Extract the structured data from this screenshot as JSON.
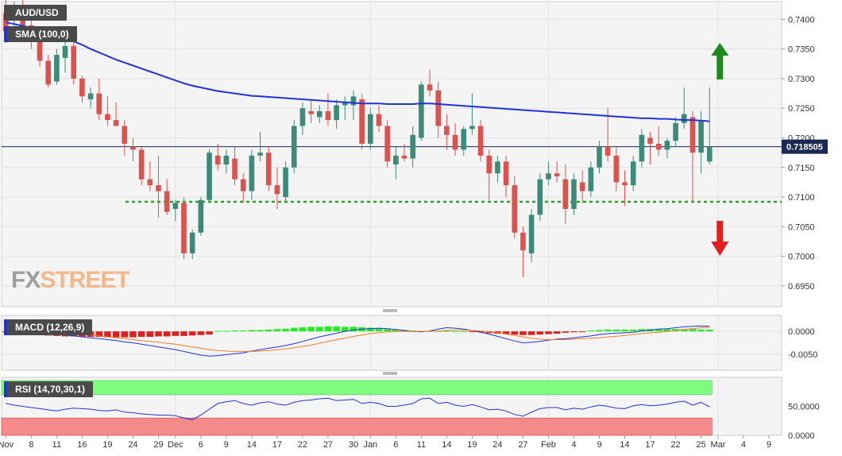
{
  "chart_data": [
    {
      "type": "candlestick",
      "symbol": "AUD/USD",
      "indicator_label": "SMA (100,0)",
      "last_price_label": "0.718505",
      "last_price": 0.718505,
      "ylim": [
        0.6915,
        0.743
      ],
      "y_ticks": [
        "0.7400",
        "0.7350",
        "0.7300",
        "0.7250",
        "0.7200",
        "0.7150",
        "0.7100",
        "0.7050",
        "0.7000",
        "0.6950"
      ],
      "y_tick_values": [
        0.74,
        0.735,
        0.73,
        0.725,
        0.72,
        0.715,
        0.71,
        0.705,
        0.7,
        0.695
      ],
      "support_level": 0.7092,
      "arrows": [
        {
          "direction": "up",
          "color": "#1e8a1e"
        },
        {
          "direction": "down",
          "color": "#e02020"
        }
      ],
      "colors": {
        "up": "#3d8a78",
        "down": "#d9534f",
        "sma": "#2133d6",
        "support": "#2aa52a"
      },
      "candles": [
        [
          0.741,
          0.744,
          0.736,
          0.738
        ],
        [
          0.74,
          0.743,
          0.737,
          0.742
        ],
        [
          0.742,
          0.744,
          0.738,
          0.739
        ],
        [
          0.739,
          0.741,
          0.735,
          0.737
        ],
        [
          0.737,
          0.738,
          0.732,
          0.733
        ],
        [
          0.733,
          0.734,
          0.7285,
          0.729
        ],
        [
          0.7295,
          0.735,
          0.729,
          0.734
        ],
        [
          0.7335,
          0.7365,
          0.731,
          0.7355
        ],
        [
          0.7355,
          0.737,
          0.729,
          0.73
        ],
        [
          0.73,
          0.7305,
          0.726,
          0.727
        ],
        [
          0.7265,
          0.7285,
          0.725,
          0.7275
        ],
        [
          0.7275,
          0.73,
          0.723,
          0.724
        ],
        [
          0.724,
          0.727,
          0.722,
          0.723
        ],
        [
          0.723,
          0.726,
          0.722,
          0.722
        ],
        [
          0.722,
          0.723,
          0.717,
          0.719
        ],
        [
          0.7185,
          0.72,
          0.716,
          0.718
        ],
        [
          0.718,
          0.7185,
          0.712,
          0.713
        ],
        [
          0.713,
          0.716,
          0.711,
          0.712
        ],
        [
          0.712,
          0.717,
          0.7065,
          0.711
        ],
        [
          0.711,
          0.713,
          0.707,
          0.7075
        ],
        [
          0.708,
          0.7095,
          0.706,
          0.709
        ],
        [
          0.709,
          0.71,
          0.6995,
          0.7005
        ],
        [
          0.7005,
          0.7045,
          0.6995,
          0.704
        ],
        [
          0.704,
          0.71,
          0.7035,
          0.7095
        ],
        [
          0.7095,
          0.718,
          0.709,
          0.7175
        ],
        [
          0.717,
          0.719,
          0.7145,
          0.7155
        ],
        [
          0.7155,
          0.718,
          0.714,
          0.717
        ],
        [
          0.7165,
          0.7185,
          0.712,
          0.713
        ],
        [
          0.713,
          0.714,
          0.709,
          0.711
        ],
        [
          0.711,
          0.718,
          0.7095,
          0.717
        ],
        [
          0.717,
          0.721,
          0.716,
          0.7175
        ],
        [
          0.7175,
          0.7185,
          0.711,
          0.712
        ],
        [
          0.712,
          0.715,
          0.708,
          0.7105
        ],
        [
          0.71,
          0.716,
          0.709,
          0.715
        ],
        [
          0.715,
          0.723,
          0.714,
          0.722
        ],
        [
          0.722,
          0.726,
          0.7205,
          0.725
        ],
        [
          0.7245,
          0.7265,
          0.7225,
          0.724
        ],
        [
          0.7235,
          0.7255,
          0.7225,
          0.7245
        ],
        [
          0.7245,
          0.7275,
          0.722,
          0.723
        ],
        [
          0.723,
          0.7265,
          0.7215,
          0.7255
        ],
        [
          0.7255,
          0.727,
          0.723,
          0.726
        ],
        [
          0.7255,
          0.728,
          0.723,
          0.727
        ],
        [
          0.7265,
          0.7275,
          0.718,
          0.719
        ],
        [
          0.719,
          0.725,
          0.718,
          0.724
        ],
        [
          0.724,
          0.7255,
          0.721,
          0.722
        ],
        [
          0.722,
          0.723,
          0.715,
          0.716
        ],
        [
          0.7155,
          0.7185,
          0.713,
          0.717
        ],
        [
          0.717,
          0.719,
          0.716,
          0.7165
        ],
        [
          0.7165,
          0.722,
          0.715,
          0.7205
        ],
        [
          0.72,
          0.7295,
          0.7195,
          0.729
        ],
        [
          0.729,
          0.7315,
          0.727,
          0.728
        ],
        [
          0.728,
          0.7295,
          0.72,
          0.722
        ],
        [
          0.722,
          0.724,
          0.718,
          0.7205
        ],
        [
          0.7205,
          0.7225,
          0.717,
          0.718
        ],
        [
          0.718,
          0.722,
          0.717,
          0.7215
        ],
        [
          0.7215,
          0.7275,
          0.7205,
          0.722
        ],
        [
          0.722,
          0.723,
          0.716,
          0.717
        ],
        [
          0.717,
          0.718,
          0.7095,
          0.714
        ],
        [
          0.714,
          0.717,
          0.7125,
          0.716
        ],
        [
          0.716,
          0.717,
          0.71,
          0.712
        ],
        [
          0.712,
          0.7135,
          0.703,
          0.704
        ],
        [
          0.704,
          0.705,
          0.6965,
          0.701
        ],
        [
          0.7005,
          0.708,
          0.699,
          0.707
        ],
        [
          0.707,
          0.714,
          0.706,
          0.713
        ],
        [
          0.713,
          0.716,
          0.712,
          0.714
        ],
        [
          0.714,
          0.716,
          0.7125,
          0.7135
        ],
        [
          0.713,
          0.7155,
          0.7055,
          0.708
        ],
        [
          0.708,
          0.714,
          0.707,
          0.713
        ],
        [
          0.7125,
          0.7145,
          0.709,
          0.711
        ],
        [
          0.711,
          0.716,
          0.71,
          0.715
        ],
        [
          0.715,
          0.7195,
          0.714,
          0.7185
        ],
        [
          0.7185,
          0.725,
          0.716,
          0.717
        ],
        [
          0.717,
          0.7185,
          0.711,
          0.7125
        ],
        [
          0.7125,
          0.7145,
          0.7085,
          0.712
        ],
        [
          0.712,
          0.717,
          0.711,
          0.716
        ],
        [
          0.716,
          0.7215,
          0.715,
          0.7205
        ],
        [
          0.72,
          0.721,
          0.7155,
          0.719
        ],
        [
          0.719,
          0.722,
          0.717,
          0.718
        ],
        [
          0.718,
          0.72,
          0.7165,
          0.7195
        ],
        [
          0.7195,
          0.7235,
          0.7185,
          0.7225
        ],
        [
          0.7225,
          0.7285,
          0.7215,
          0.724
        ],
        [
          0.7235,
          0.7245,
          0.709,
          0.7175
        ],
        [
          0.7175,
          0.7245,
          0.714,
          0.723
        ],
        [
          0.716,
          0.7285,
          0.7155,
          0.7185
        ]
      ],
      "sma_values": [
        0.7395,
        0.7392,
        0.7389,
        0.7386,
        0.7382,
        0.7378,
        0.7373,
        0.7368,
        0.7363,
        0.7357,
        0.735,
        0.7344,
        0.7338,
        0.7332,
        0.7327,
        0.7322,
        0.7317,
        0.7312,
        0.7307,
        0.7302,
        0.7297,
        0.7292,
        0.7288,
        0.7285,
        0.7282,
        0.7279,
        0.7277,
        0.7275,
        0.7273,
        0.7271,
        0.727,
        0.7269,
        0.7268,
        0.7267,
        0.7266,
        0.7265,
        0.7264,
        0.7263,
        0.7262,
        0.7261,
        0.726,
        0.7259,
        0.7258,
        0.7258,
        0.7258,
        0.7257,
        0.7257,
        0.7257,
        0.7257,
        0.7258,
        0.7258,
        0.7257,
        0.7256,
        0.7255,
        0.7254,
        0.7253,
        0.7252,
        0.7251,
        0.725,
        0.7249,
        0.7248,
        0.7247,
        0.7246,
        0.7245,
        0.7244,
        0.7243,
        0.7242,
        0.7241,
        0.724,
        0.7239,
        0.7238,
        0.7237,
        0.7236,
        0.7235,
        0.7234,
        0.7233,
        0.7233,
        0.7232,
        0.7232,
        0.7231,
        0.723,
        0.723,
        0.7229,
        0.7228
      ]
    },
    {
      "type": "macd",
      "label": "MACD (12,26,9)",
      "ylim": [
        -0.0085,
        0.0035
      ],
      "y_ticks": [
        "0.0000",
        "-0.0050"
      ],
      "y_tick_values": [
        0,
        -0.005
      ],
      "colors": {
        "hist_pos": "#22ee22",
        "hist_neg": "#e02020",
        "macd": "#2133d6",
        "signal": "#f07c22"
      },
      "histogram": [
        -0.0002,
        -0.0004,
        -0.0006,
        -0.0007,
        -0.0008,
        -0.0009,
        -0.001,
        -0.0011,
        -0.0011,
        -0.0012,
        -0.0012,
        -0.0012,
        -0.0013,
        -0.0013,
        -0.0013,
        -0.0013,
        -0.0012,
        -0.0012,
        -0.0011,
        -0.0011,
        -0.001,
        -0.001,
        -0.0009,
        -0.0008,
        -0.0007,
        0.0001,
        0.0001,
        0.0002,
        0.0002,
        0.0003,
        0.0003,
        0.0004,
        0.0005,
        0.0006,
        0.0008,
        0.0009,
        0.001,
        0.001,
        0.0011,
        0.0011,
        0.001,
        0.001,
        0.0009,
        0.0008,
        0.0007,
        0.0005,
        0.0004,
        0.0003,
        0.0002,
        0.0001,
        0.0001,
        0.0001,
        0.0001,
        0.0,
        0.0,
        -0.0001,
        -0.0002,
        -0.0004,
        -0.0005,
        -0.0006,
        -0.0007,
        -0.0008,
        -0.0008,
        -0.0007,
        -0.0006,
        -0.0005,
        -0.0003,
        -0.0002,
        -0.0001,
        0.0002,
        0.0003,
        0.0004,
        0.0004,
        0.0004,
        0.0004,
        0.0005,
        0.0005,
        0.0005,
        0.0005,
        0.0005,
        0.0005,
        0.0005,
        0.0004,
        0.0004
      ],
      "macd": [
        0.0008,
        0.0006,
        0.0004,
        0.0001,
        -0.0001,
        -0.0003,
        -0.0006,
        -0.0008,
        -0.001,
        -0.0012,
        -0.0014,
        -0.0016,
        -0.0018,
        -0.002,
        -0.0023,
        -0.0025,
        -0.0028,
        -0.0031,
        -0.0034,
        -0.0037,
        -0.004,
        -0.0044,
        -0.0048,
        -0.0052,
        -0.0054,
        -0.0053,
        -0.0051,
        -0.0049,
        -0.0047,
        -0.0043,
        -0.004,
        -0.0037,
        -0.0034,
        -0.0031,
        -0.0027,
        -0.0022,
        -0.0017,
        -0.0012,
        -0.0008,
        -0.0004,
        0.0,
        0.0003,
        0.0005,
        0.0006,
        0.0007,
        0.0006,
        0.0004,
        0.0002,
        0.0,
        -0.0001,
        0.0001,
        0.0005,
        0.0008,
        0.0007,
        0.0005,
        0.0002,
        -0.0002,
        -0.0006,
        -0.0011,
        -0.0016,
        -0.0021,
        -0.0025,
        -0.0024,
        -0.0022,
        -0.0019,
        -0.0017,
        -0.0016,
        -0.0014,
        -0.0012,
        -0.001,
        -0.0007,
        -0.0005,
        -0.0004,
        -0.0003,
        -0.0002,
        0.0001,
        0.0003,
        0.0005,
        0.0006,
        0.0008,
        0.001,
        0.0011,
        0.0012,
        0.0011
      ],
      "signal": [
        0.0004,
        0.0003,
        0.0002,
        0.0001,
        0.0,
        -0.0001,
        -0.0002,
        -0.0003,
        -0.0005,
        -0.0006,
        -0.0008,
        -0.001,
        -0.0012,
        -0.0014,
        -0.0016,
        -0.0018,
        -0.002,
        -0.0022,
        -0.0024,
        -0.0026,
        -0.0028,
        -0.0031,
        -0.0034,
        -0.0037,
        -0.004,
        -0.0042,
        -0.0043,
        -0.0044,
        -0.0044,
        -0.0044,
        -0.0043,
        -0.0042,
        -0.004,
        -0.0038,
        -0.0036,
        -0.0033,
        -0.003,
        -0.0026,
        -0.0022,
        -0.0018,
        -0.0015,
        -0.0011,
        -0.0008,
        -0.0005,
        -0.0003,
        -0.0001,
        0.0,
        0.0,
        0.0,
        0.0,
        0.0,
        0.0001,
        0.0002,
        0.0003,
        0.0003,
        0.0002,
        0.0001,
        -0.0001,
        -0.0003,
        -0.0006,
        -0.0009,
        -0.0012,
        -0.0015,
        -0.0017,
        -0.0018,
        -0.0018,
        -0.0018,
        -0.0017,
        -0.0016,
        -0.0015,
        -0.0014,
        -0.0012,
        -0.0011,
        -0.0009,
        -0.0007,
        -0.0005,
        -0.0003,
        -0.0002,
        0.0,
        0.0002,
        0.0004,
        0.0006,
        0.0008,
        0.0009
      ]
    },
    {
      "type": "rsi",
      "label": "RSI (14,70,30,1)",
      "ylim": [
        0,
        100
      ],
      "y_ticks": [
        "50.0000",
        "0.0000"
      ],
      "y_tick_values": [
        50,
        0
      ],
      "overbought": 70,
      "oversold": 30,
      "colors": {
        "line": "#2133d6",
        "overbought": "#7dfc7d",
        "oversold": "#f58a8a"
      },
      "values": [
        55,
        52,
        50,
        48,
        46,
        44,
        42,
        45,
        47,
        46,
        45,
        43,
        42,
        44,
        40,
        39,
        37,
        36,
        35,
        35,
        34,
        30,
        27,
        35,
        45,
        55,
        58,
        60,
        55,
        52,
        56,
        58,
        54,
        52,
        57,
        60,
        61,
        63,
        64,
        60,
        61,
        62,
        55,
        57,
        55,
        50,
        50,
        52,
        55,
        63,
        64,
        55,
        57,
        52,
        50,
        53,
        49,
        44,
        45,
        42,
        36,
        33,
        40,
        46,
        48,
        48,
        44,
        47,
        45,
        49,
        52,
        50,
        47,
        46,
        51,
        53,
        51,
        52,
        54,
        57,
        59,
        52,
        57,
        49
      ]
    }
  ],
  "x_axis": {
    "labels": [
      "Nov",
      "8",
      "11",
      "16",
      "19",
      "24",
      "29",
      "Dec",
      "6",
      "9",
      "14",
      "17",
      "22",
      "27",
      "30",
      "Jan",
      "6",
      "11",
      "14",
      "19",
      "24",
      "27",
      "Feb",
      "4",
      "9",
      "14",
      "17",
      "22",
      "25",
      "Mar",
      "4",
      "9"
    ],
    "label_slots": [
      0,
      3,
      6,
      9,
      12,
      15,
      18,
      20,
      23,
      26,
      29,
      32,
      35,
      38,
      41,
      43,
      46,
      49,
      52,
      55,
      58,
      61,
      64,
      67,
      70,
      73,
      76,
      79,
      82,
      84,
      87,
      90
    ],
    "separator_slots": [
      20,
      43,
      64,
      84
    ]
  },
  "logo": {
    "part1": "FX",
    "part2": "STREET"
  }
}
